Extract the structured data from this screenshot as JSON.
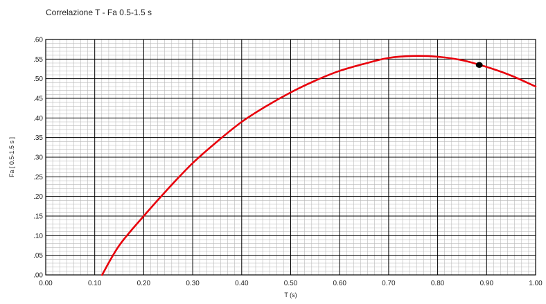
{
  "chart_data": {
    "type": "line",
    "title": "Correlazione T - Fa 0.5-1.5 s",
    "xlabel": "T (s)",
    "ylabel": "Fa [ 0.5-1.5 s ]",
    "xlim": [
      0.0,
      1.0
    ],
    "ylim": [
      0.0,
      0.6
    ],
    "x_ticks": [
      "0.00",
      "0.10",
      "0.20",
      "0.30",
      "0.40",
      "0.50",
      "0.60",
      "0.70",
      "0.80",
      "0.90",
      "1.00"
    ],
    "y_ticks": [
      ".00",
      ".05",
      ".10",
      ".15",
      ".20",
      ".25",
      ".30",
      ".35",
      ".40",
      ".45",
      ".50",
      ".55",
      ".60"
    ],
    "grid": true,
    "series": [
      {
        "color": "#e8000b",
        "x": [
          0.115,
          0.15,
          0.2,
          0.25,
          0.3,
          0.35,
          0.4,
          0.45,
          0.5,
          0.55,
          0.6,
          0.65,
          0.7,
          0.75,
          0.8,
          0.85,
          0.9,
          0.95,
          1.0
        ],
        "y": [
          0.0,
          0.075,
          0.15,
          0.22,
          0.285,
          0.34,
          0.39,
          0.43,
          0.465,
          0.495,
          0.52,
          0.538,
          0.553,
          0.558,
          0.556,
          0.547,
          0.53,
          0.508,
          0.48
        ]
      }
    ],
    "points": [
      {
        "x": 0.885,
        "y": 0.535,
        "color": "#000000"
      }
    ]
  }
}
